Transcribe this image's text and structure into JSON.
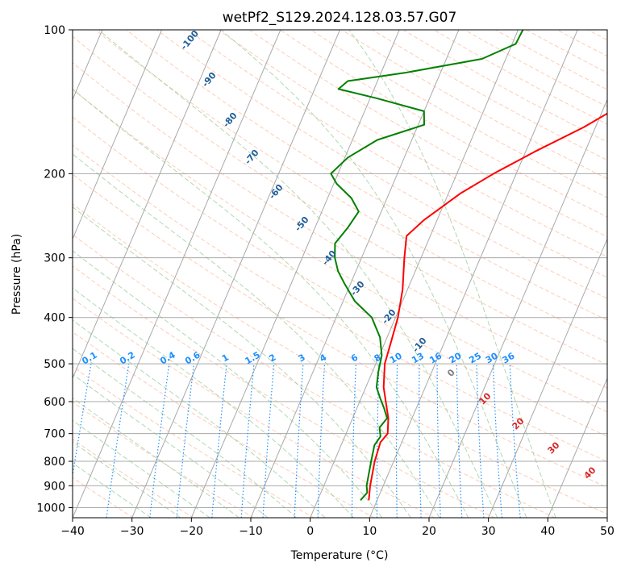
{
  "chart_data": {
    "type": "line",
    "subtype": "skew-t",
    "title": "wetPf2_S129.2024.128.03.57.G07",
    "xlabel": "Temperature (°C)",
    "ylabel": "Pressure (hPa)",
    "xlim": [
      -40,
      50
    ],
    "ylim": [
      1050,
      100
    ],
    "y_scale": "log",
    "grid": true,
    "x_ticks": [
      {
        "value": -40,
        "label": "−40"
      },
      {
        "value": -30,
        "label": "−30"
      },
      {
        "value": -20,
        "label": "−20"
      },
      {
        "value": -10,
        "label": "−10"
      },
      {
        "value": 0,
        "label": "0"
      },
      {
        "value": 10,
        "label": "10"
      },
      {
        "value": 20,
        "label": "20"
      },
      {
        "value": 30,
        "label": "30"
      },
      {
        "value": 40,
        "label": "40"
      },
      {
        "value": 50,
        "label": "50"
      }
    ],
    "y_ticks": [
      {
        "value": 1000,
        "label": "1000"
      },
      {
        "value": 900,
        "label": "900"
      },
      {
        "value": 800,
        "label": "800"
      },
      {
        "value": 700,
        "label": "700"
      },
      {
        "value": 600,
        "label": "600"
      },
      {
        "value": 500,
        "label": "500"
      },
      {
        "value": 400,
        "label": "400"
      },
      {
        "value": 300,
        "label": "300"
      },
      {
        "value": 200,
        "label": "200"
      },
      {
        "value": 100,
        "label": "100"
      }
    ],
    "series": [
      {
        "color": "#ff0000",
        "points": [
          {
            "p": 965,
            "t": 8.6
          },
          {
            "p": 900,
            "t": 7.8
          },
          {
            "p": 800,
            "t": 6.8
          },
          {
            "p": 730,
            "t": 6.4
          },
          {
            "p": 700,
            "t": 7.0
          },
          {
            "p": 650,
            "t": 6.0
          },
          {
            "p": 600,
            "t": 4.4
          },
          {
            "p": 560,
            "t": 3.0
          },
          {
            "p": 500,
            "t": 1.5
          },
          {
            "p": 450,
            "t": 1.0
          },
          {
            "p": 400,
            "t": 0.4
          },
          {
            "p": 350,
            "t": -0.8
          },
          {
            "p": 300,
            "t": -2.8
          },
          {
            "p": 270,
            "t": -4.0
          },
          {
            "p": 250,
            "t": -2.2
          },
          {
            "p": 220,
            "t": 2.0
          },
          {
            "p": 200,
            "t": 6.2
          },
          {
            "p": 180,
            "t": 11.5
          },
          {
            "p": 160,
            "t": 18.0
          },
          {
            "p": 140,
            "t": 24.0
          },
          {
            "p": 120,
            "t": 27.0
          },
          {
            "p": 110,
            "t": 30.0
          },
          {
            "p": 100,
            "t": 32.0
          }
        ]
      },
      {
        "color": "#008000",
        "points": [
          {
            "p": 965,
            "t": 7.2
          },
          {
            "p": 930,
            "t": 7.8
          },
          {
            "p": 900,
            "t": 7.2
          },
          {
            "p": 800,
            "t": 6.2
          },
          {
            "p": 740,
            "t": 5.6
          },
          {
            "p": 710,
            "t": 6.0
          },
          {
            "p": 680,
            "t": 5.2
          },
          {
            "p": 650,
            "t": 5.8
          },
          {
            "p": 620,
            "t": 4.6
          },
          {
            "p": 590,
            "t": 3.2
          },
          {
            "p": 560,
            "t": 1.8
          },
          {
            "p": 520,
            "t": 1.0
          },
          {
            "p": 480,
            "t": 0.4
          },
          {
            "p": 440,
            "t": -1.2
          },
          {
            "p": 400,
            "t": -4.0
          },
          {
            "p": 370,
            "t": -8.0
          },
          {
            "p": 340,
            "t": -11.0
          },
          {
            "p": 320,
            "t": -13.0
          },
          {
            "p": 300,
            "t": -14.5
          },
          {
            "p": 280,
            "t": -15.5
          },
          {
            "p": 260,
            "t": -14.5
          },
          {
            "p": 240,
            "t": -13.8
          },
          {
            "p": 225,
            "t": -16.0
          },
          {
            "p": 210,
            "t": -19.5
          },
          {
            "p": 200,
            "t": -21.2
          },
          {
            "p": 185,
            "t": -19.5
          },
          {
            "p": 170,
            "t": -15.8
          },
          {
            "p": 158,
            "t": -9.0
          },
          {
            "p": 148,
            "t": -10.0
          },
          {
            "p": 139,
            "t": -19.0
          },
          {
            "p": 133,
            "t": -26.0
          },
          {
            "p": 128,
            "t": -25.0
          },
          {
            "p": 123,
            "t": -16.0
          },
          {
            "p": 115,
            "t": -4.0
          },
          {
            "p": 107,
            "t": 0.6
          },
          {
            "p": 100,
            "t": 0.8
          }
        ]
      }
    ],
    "dry_adiabat_labels": [
      "-100",
      "-90",
      "-80",
      "-70",
      "-60",
      "-50",
      "-40",
      "-30",
      "-20",
      "-10"
    ],
    "mixing_ratio_labels": [
      "0.1",
      "0.2",
      "0.4",
      "0.6",
      "1",
      "1.5",
      "2",
      "3",
      "4",
      "6",
      "8",
      "10",
      "13",
      "16",
      "20",
      "25",
      "30",
      "36"
    ],
    "moist_adiabat_labels": [
      "0",
      "10",
      "20",
      "30",
      "40"
    ],
    "colors": {
      "temperature": "#ff0000",
      "dewpoint": "#008000",
      "isotherm": "#a9a9a9",
      "isobar": "#a9a9a9",
      "dry_adiabat": "#ffa07a",
      "moist_adiabat": "#90c890",
      "mixing_ratio": "#1e90ff",
      "dry_adiabat_label": "#1f5f99",
      "mixing_ratio_label": "#1e90ff",
      "moist_adiabat_label_cold": "#808080",
      "moist_adiabat_label_warm": "#d62728"
    }
  }
}
